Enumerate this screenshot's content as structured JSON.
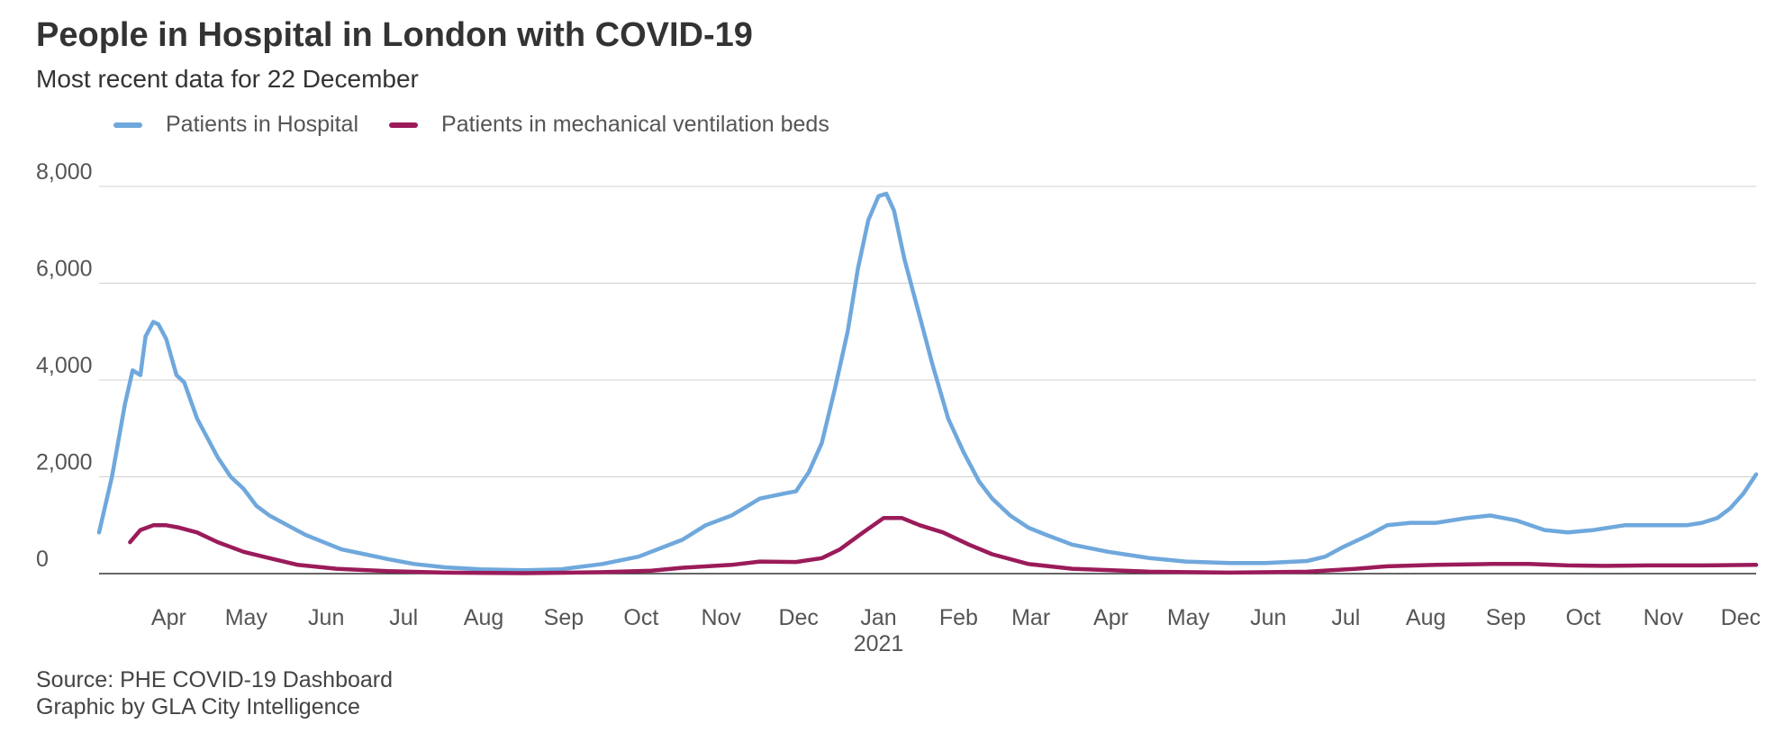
{
  "title": "People in Hospital in London with COVID-19",
  "subtitle": "Most recent data for 22 December",
  "source_lines": [
    "Source: PHE COVID-19 Dashboard",
    "Graphic by GLA City Intelligence"
  ],
  "chart_data": {
    "type": "line",
    "ylim": [
      0,
      8000
    ],
    "y_ticks": [
      {
        "value": 0,
        "label": "0"
      },
      {
        "value": 2000,
        "label": "2,000"
      },
      {
        "value": 4000,
        "label": "4,000"
      },
      {
        "value": 6000,
        "label": "6,000"
      },
      {
        "value": 8000,
        "label": "8,000"
      }
    ],
    "x_range": [
      "2020-03-20",
      "2021-12-22"
    ],
    "x_ticks": [
      {
        "date": "2020-04-01",
        "label": "Apr"
      },
      {
        "date": "2020-05-01",
        "label": "May"
      },
      {
        "date": "2020-06-01",
        "label": "Jun"
      },
      {
        "date": "2020-07-01",
        "label": "Jul"
      },
      {
        "date": "2020-08-01",
        "label": "Aug"
      },
      {
        "date": "2020-09-01",
        "label": "Sep"
      },
      {
        "date": "2020-10-01",
        "label": "Oct"
      },
      {
        "date": "2020-11-01",
        "label": "Nov"
      },
      {
        "date": "2020-12-01",
        "label": "Dec"
      },
      {
        "date": "2021-01-01",
        "label": "Jan",
        "sublabel": "2021"
      },
      {
        "date": "2021-02-01",
        "label": "Feb"
      },
      {
        "date": "2021-03-01",
        "label": "Mar"
      },
      {
        "date": "2021-04-01",
        "label": "Apr"
      },
      {
        "date": "2021-05-01",
        "label": "May"
      },
      {
        "date": "2021-06-01",
        "label": "Jun"
      },
      {
        "date": "2021-07-01",
        "label": "Jul"
      },
      {
        "date": "2021-08-01",
        "label": "Aug"
      },
      {
        "date": "2021-09-01",
        "label": "Sep"
      },
      {
        "date": "2021-10-01",
        "label": "Oct"
      },
      {
        "date": "2021-11-01",
        "label": "Nov"
      },
      {
        "date": "2021-12-01",
        "label": "Dec"
      }
    ],
    "grid": true,
    "legend_position": "top-left",
    "series": [
      {
        "name": "Patients in Hospital",
        "color": "#6fa8dc",
        "points": [
          [
            "2020-03-20",
            850
          ],
          [
            "2020-03-25",
            2000
          ],
          [
            "2020-03-30",
            3500
          ],
          [
            "2020-04-02",
            4200
          ],
          [
            "2020-04-05",
            4100
          ],
          [
            "2020-04-07",
            4900
          ],
          [
            "2020-04-10",
            5200
          ],
          [
            "2020-04-12",
            5150
          ],
          [
            "2020-04-15",
            4850
          ],
          [
            "2020-04-19",
            4100
          ],
          [
            "2020-04-22",
            3950
          ],
          [
            "2020-04-27",
            3200
          ],
          [
            "2020-05-01",
            2800
          ],
          [
            "2020-05-05",
            2400
          ],
          [
            "2020-05-10",
            2000
          ],
          [
            "2020-05-15",
            1750
          ],
          [
            "2020-05-20",
            1400
          ],
          [
            "2020-05-25",
            1200
          ],
          [
            "2020-06-01",
            1000
          ],
          [
            "2020-06-08",
            800
          ],
          [
            "2020-06-15",
            650
          ],
          [
            "2020-06-22",
            500
          ],
          [
            "2020-07-01",
            400
          ],
          [
            "2020-07-10",
            300
          ],
          [
            "2020-07-20",
            200
          ],
          [
            "2020-08-01",
            130
          ],
          [
            "2020-08-15",
            90
          ],
          [
            "2020-09-01",
            70
          ],
          [
            "2020-09-15",
            90
          ],
          [
            "2020-10-01",
            200
          ],
          [
            "2020-10-15",
            350
          ],
          [
            "2020-11-01",
            700
          ],
          [
            "2020-11-10",
            1000
          ],
          [
            "2020-11-20",
            1200
          ],
          [
            "2020-12-01",
            1550
          ],
          [
            "2020-12-10",
            1650
          ],
          [
            "2020-12-15",
            1700
          ],
          [
            "2020-12-20",
            2100
          ],
          [
            "2020-12-25",
            2700
          ],
          [
            "2020-12-30",
            3800
          ],
          [
            "2021-01-04",
            5000
          ],
          [
            "2021-01-08",
            6300
          ],
          [
            "2021-01-12",
            7300
          ],
          [
            "2021-01-16",
            7800
          ],
          [
            "2021-01-19",
            7850
          ],
          [
            "2021-01-22",
            7500
          ],
          [
            "2021-01-26",
            6500
          ],
          [
            "2021-02-01",
            5300
          ],
          [
            "2021-02-06",
            4300
          ],
          [
            "2021-02-12",
            3200
          ],
          [
            "2021-02-18",
            2500
          ],
          [
            "2021-02-24",
            1900
          ],
          [
            "2021-03-01",
            1550
          ],
          [
            "2021-03-08",
            1200
          ],
          [
            "2021-03-15",
            950
          ],
          [
            "2021-03-22",
            800
          ],
          [
            "2021-04-01",
            600
          ],
          [
            "2021-04-15",
            450
          ],
          [
            "2021-05-01",
            320
          ],
          [
            "2021-05-15",
            250
          ],
          [
            "2021-06-01",
            220
          ],
          [
            "2021-06-15",
            220
          ],
          [
            "2021-07-01",
            260
          ],
          [
            "2021-07-08",
            350
          ],
          [
            "2021-07-15",
            550
          ],
          [
            "2021-07-25",
            800
          ],
          [
            "2021-08-01",
            1000
          ],
          [
            "2021-08-10",
            1050
          ],
          [
            "2021-08-20",
            1050
          ],
          [
            "2021-09-01",
            1150
          ],
          [
            "2021-09-10",
            1200
          ],
          [
            "2021-09-20",
            1100
          ],
          [
            "2021-10-01",
            900
          ],
          [
            "2021-10-10",
            850
          ],
          [
            "2021-10-20",
            900
          ],
          [
            "2021-11-01",
            1000
          ],
          [
            "2021-11-15",
            1000
          ],
          [
            "2021-11-25",
            1000
          ],
          [
            "2021-12-01",
            1050
          ],
          [
            "2021-12-07",
            1150
          ],
          [
            "2021-12-12",
            1350
          ],
          [
            "2021-12-17",
            1650
          ],
          [
            "2021-12-22",
            2050
          ]
        ]
      },
      {
        "name": "Patients in mechanical ventilation beds",
        "color": "#9b1b5a",
        "points": [
          [
            "2020-04-01",
            650
          ],
          [
            "2020-04-05",
            900
          ],
          [
            "2020-04-10",
            1000
          ],
          [
            "2020-04-15",
            1000
          ],
          [
            "2020-04-20",
            950
          ],
          [
            "2020-04-27",
            850
          ],
          [
            "2020-05-05",
            650
          ],
          [
            "2020-05-15",
            450
          ],
          [
            "2020-05-25",
            320
          ],
          [
            "2020-06-05",
            180
          ],
          [
            "2020-06-20",
            100
          ],
          [
            "2020-07-10",
            50
          ],
          [
            "2020-08-01",
            20
          ],
          [
            "2020-09-01",
            10
          ],
          [
            "2020-10-01",
            30
          ],
          [
            "2020-10-20",
            60
          ],
          [
            "2020-11-01",
            120
          ],
          [
            "2020-11-20",
            180
          ],
          [
            "2020-12-01",
            250
          ],
          [
            "2020-12-15",
            240
          ],
          [
            "2020-12-25",
            320
          ],
          [
            "2021-01-01",
            500
          ],
          [
            "2021-01-10",
            850
          ],
          [
            "2021-01-18",
            1150
          ],
          [
            "2021-01-25",
            1150
          ],
          [
            "2021-02-01",
            1000
          ],
          [
            "2021-02-10",
            850
          ],
          [
            "2021-02-20",
            600
          ],
          [
            "2021-03-01",
            400
          ],
          [
            "2021-03-15",
            200
          ],
          [
            "2021-04-01",
            100
          ],
          [
            "2021-05-01",
            40
          ],
          [
            "2021-06-01",
            20
          ],
          [
            "2021-07-01",
            40
          ],
          [
            "2021-07-20",
            100
          ],
          [
            "2021-08-01",
            150
          ],
          [
            "2021-08-20",
            180
          ],
          [
            "2021-09-10",
            200
          ],
          [
            "2021-09-25",
            200
          ],
          [
            "2021-10-10",
            170
          ],
          [
            "2021-10-25",
            160
          ],
          [
            "2021-11-10",
            170
          ],
          [
            "2021-12-01",
            170
          ],
          [
            "2021-12-22",
            180
          ]
        ]
      }
    ]
  }
}
